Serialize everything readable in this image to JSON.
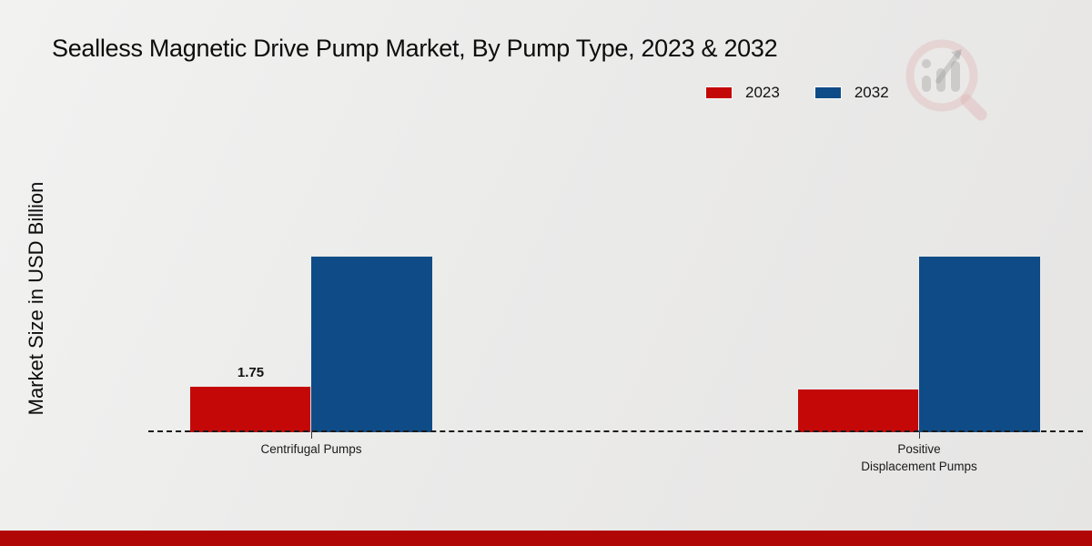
{
  "page": {
    "footer_color": "#b00606",
    "background_color": "#eaeaea"
  },
  "watermark": {
    "icon": "magnifier-bar-chart-logo",
    "glass_color": "#d89090",
    "bars_color": "#8a8a8a"
  },
  "chart_data": {
    "type": "bar",
    "title": "Sealless Magnetic Drive Pump Market, By Pump Type, 2023 & 2032",
    "xlabel": "",
    "ylabel": "Market Size in USD Billion",
    "categories": [
      "Centrifugal Pumps",
      "Positive Displacement Pumps"
    ],
    "series": [
      {
        "name": "2023",
        "color": "#c40808",
        "values": [
          1.75,
          1.65
        ],
        "value_labels": [
          "1.75",
          ""
        ]
      },
      {
        "name": "2032",
        "color": "#0f4c87",
        "values": [
          6.75,
          6.75
        ],
        "value_labels": [
          "",
          ""
        ]
      }
    ],
    "ylim": [
      0,
      7.5
    ],
    "grid": false,
    "legend_position": "top-right",
    "baseline_style": "dashed",
    "unit": "USD Billion"
  }
}
